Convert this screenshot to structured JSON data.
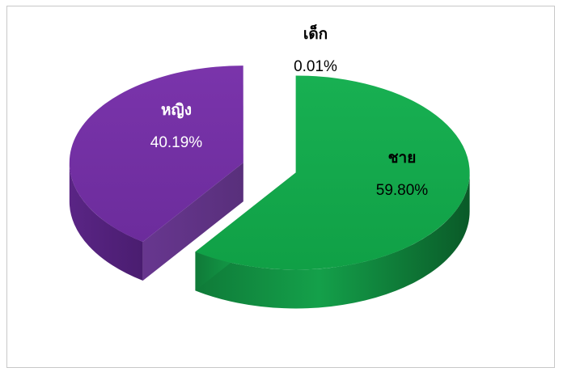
{
  "chart_data": {
    "type": "pie",
    "style": "3d-exploded",
    "legend": "none",
    "categories": [
      "ชาย",
      "หญิง",
      "เด็ก"
    ],
    "values": [
      59.8,
      40.19,
      0.01
    ],
    "value_labels": [
      "59.80%",
      "40.19%",
      "0.01%"
    ],
    "colors": [
      "#12a54a",
      "#7030a0",
      "#4472c4"
    ]
  }
}
